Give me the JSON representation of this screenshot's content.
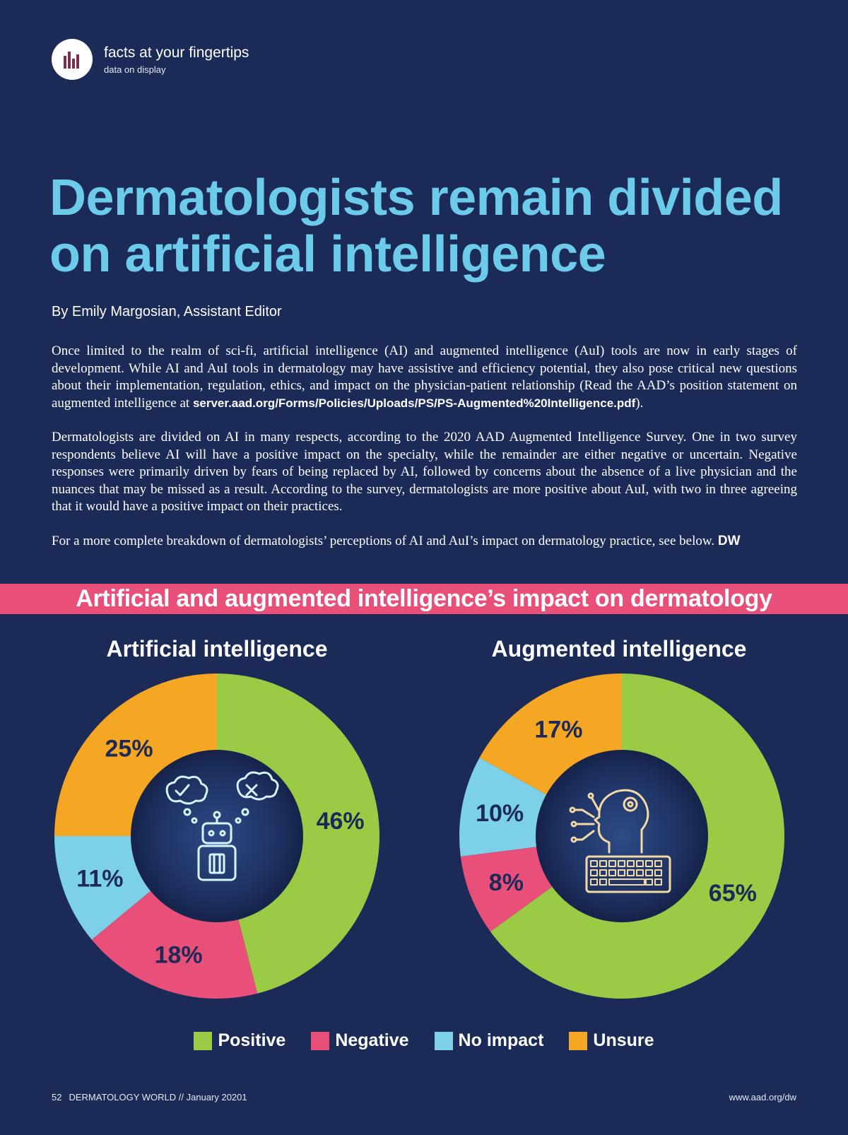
{
  "header": {
    "title": "facts at your fingertips",
    "subtitle": "data on display"
  },
  "headline": "Dermatologists remain divided on artificial intelligence",
  "byline": "By Emily Margosian, Assistant Editor",
  "body": {
    "p1_text": "Once limited to the realm of sci-fi, artificial intelligence (AI) and augmented intelligence (AuI) tools are now in early stages of development. While AI and AuI tools in dermatology may have assistive and efficiency potential, they also pose critical new questions about their implementation, regulation, ethics, and impact on the physician-patient relationship (Read the AAD’s position statement on augmented intelligence at ",
    "p1_url": "server.aad.org/Forms/Policies/Uploads/PS/PS-Augmented%20Intelligence.pdf",
    "p1_end": ").",
    "p2": "Dermatologists are divided on AI in many respects, according to the 2020 AAD Augmented Intelligence Survey. One in two survey respondents believe AI will have a positive impact on the specialty, while the remainder are either negative or uncertain. Negative responses were primarily driven by fears of being replaced by AI, followed by concerns about the absence of a live physician and the nuances that may be missed as a result. According to the survey, dermatologists are more positive about AuI, with two in three agreeing that it would have a positive impact on their practices.",
    "p3_text": "For a more complete breakdown of dermatologists’ perceptions of AI and AuI’s impact on dermatology practice, see below. ",
    "p3_sign": "DW"
  },
  "banner": "Artificial and augmented intelligence’s impact on dermatology",
  "colors": {
    "positive": "#9bcb45",
    "negative": "#e8507a",
    "no_impact": "#7cd0e8",
    "unsure": "#f5a623",
    "background": "#1b2a57",
    "headline": "#6ccbea"
  },
  "chart_data": [
    {
      "type": "pie",
      "title": "Artificial intelligence",
      "categories": [
        "Positive",
        "Negative",
        "No impact",
        "Unsure"
      ],
      "values": [
        46,
        18,
        11,
        25
      ],
      "labels": [
        "46%",
        "18%",
        "11%",
        "25%"
      ],
      "center_icon": "robot-icon"
    },
    {
      "type": "pie",
      "title": "Augmented intelligence",
      "categories": [
        "Positive",
        "Negative",
        "No impact",
        "Unsure"
      ],
      "values": [
        65,
        8,
        10,
        17
      ],
      "labels": [
        "65%",
        "8%",
        "10%",
        "17%"
      ],
      "center_icon": "head-keyboard-icon"
    }
  ],
  "legend": [
    {
      "label": "Positive",
      "color": "#9bcb45"
    },
    {
      "label": "Negative",
      "color": "#e8507a"
    },
    {
      "label": "No impact",
      "color": "#7cd0e8"
    },
    {
      "label": "Unsure",
      "color": "#f5a623"
    }
  ],
  "footer": {
    "page": "52",
    "publication": "DERMATOLOGY WORLD // January 20201",
    "url": "www.aad.org/dw"
  }
}
